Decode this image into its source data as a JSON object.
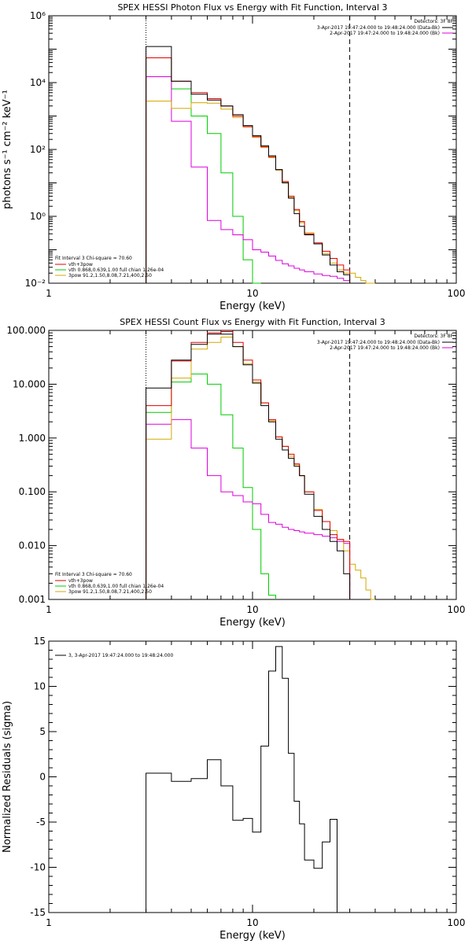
{
  "colors": {
    "data": "#000000",
    "total": "#e00000",
    "vth": "#00cc00",
    "bpow": "#dd00dd",
    "third": "#d4a800",
    "ax": "#000000"
  },
  "chart_data": [
    {
      "type": "line",
      "title": "SPEX HESSI Photon Flux vs Energy with Fit Function, Interval 3",
      "xlabel": "Energy (keV)",
      "ylabel": "photons s⁻¹ cm⁻² keV⁻¹",
      "xscale": "log",
      "yscale": "log",
      "xlim": [
        1,
        100
      ],
      "ylim": [
        0.01,
        1000000
      ],
      "xticks": [
        {
          "v": 1,
          "label": "1"
        },
        {
          "v": 10,
          "label": "10"
        },
        {
          "v": 100,
          "label": "100"
        }
      ],
      "yticks": [
        {
          "v": 0.01,
          "label": "10⁻²"
        },
        {
          "v": 1,
          "label": "10⁰"
        },
        {
          "v": 100,
          "label": "10²"
        },
        {
          "v": 10000,
          "label": "10⁴"
        },
        {
          "v": 1000000,
          "label": "10⁶"
        }
      ],
      "vlines": [
        {
          "x": 3,
          "style": "dotted"
        },
        {
          "x": 30,
          "style": "dashed"
        }
      ],
      "edges": [
        3,
        4,
        5,
        6,
        7,
        8,
        9,
        10,
        11,
        12,
        13,
        14,
        15,
        16,
        17,
        18,
        20,
        22,
        24,
        26,
        28,
        30,
        32,
        34,
        36,
        38,
        40
      ],
      "series": [
        {
          "key": "data",
          "values": [
            120000,
            11000,
            4500,
            3000,
            2000,
            1100,
            520,
            260,
            130,
            65,
            25,
            10,
            3.5,
            1.2,
            0.5,
            0.28,
            0.15,
            0.07,
            0.035,
            0.022,
            0.018,
            null,
            null,
            null,
            null,
            null
          ]
        },
        {
          "key": "total",
          "values": [
            55000,
            11000,
            5000,
            3300,
            2000,
            1000,
            480,
            240,
            120,
            60,
            25,
            11,
            4,
            1.6,
            0.7,
            0.3,
            0.16,
            0.09,
            0.055,
            0.035,
            0.025,
            null,
            null,
            null,
            null,
            null
          ]
        },
        {
          "key": "vth",
          "values": [
            55000,
            6500,
            1000,
            300,
            20,
            1,
            0.05,
            0.004,
            null,
            null,
            null,
            null,
            null,
            null,
            null,
            null,
            null,
            null,
            null,
            null,
            null,
            null,
            null,
            null,
            null,
            null
          ]
        },
        {
          "key": "bpow",
          "values": [
            15000,
            700,
            30,
            0.75,
            0.4,
            0.28,
            0.2,
            0.1,
            0.085,
            0.065,
            0.048,
            0.038,
            0.033,
            0.028,
            0.025,
            0.022,
            0.019,
            0.017,
            0.016,
            0.014,
            0.012,
            null,
            null,
            null,
            null,
            null
          ]
        },
        {
          "key": "third",
          "values": [
            2800,
            1700,
            2500,
            2400,
            1600,
            900,
            470,
            230,
            115,
            57,
            24,
            10.5,
            3.7,
            1.5,
            0.65,
            0.32,
            0.15,
            0.075,
            0.04,
            0.025,
            0.02,
            0.02,
            0.015,
            0.012,
            0.01,
            0.008
          ]
        }
      ],
      "legend_right": {
        "header": "Detectors: 3F 8F",
        "entries": [
          {
            "text": "3-Apr-2017 19:47:24.000 to 19:48:24.000 (Data-Bk)",
            "color": "data"
          },
          {
            "text": "2-Apr-2017 19:47:24.000 to 19:48:24.000 (Bk)",
            "color": "bpow"
          }
        ]
      },
      "legend_left": {
        "header": "Fit Interval 3   Chi-square = 70.60",
        "entries": [
          {
            "text": "vth+3pow",
            "color": "total"
          },
          {
            "text": "vth 0.868,0.639,1.00  full chian 1.26e-04",
            "color": "vth"
          },
          {
            "text": "3pow 91.2,1.50,8.08,7.21,400,2.50",
            "color": "third"
          }
        ]
      }
    },
    {
      "type": "line",
      "title": "SPEX HESSI Count Flux vs Energy with Fit Function, Interval 3",
      "xlabel": "Energy (keV)",
      "ylabel": "",
      "xscale": "log",
      "yscale": "log",
      "xlim": [
        1,
        100
      ],
      "ylim": [
        0.001,
        100
      ],
      "xticks": [
        {
          "v": 1,
          "label": "1"
        },
        {
          "v": 10,
          "label": "10"
        },
        {
          "v": 100,
          "label": "100"
        }
      ],
      "yticks": [
        {
          "v": 0.001,
          "label": "0.001"
        },
        {
          "v": 0.01,
          "label": "0.010"
        },
        {
          "v": 0.1,
          "label": "0.100"
        },
        {
          "v": 1,
          "label": "1.000"
        },
        {
          "v": 10,
          "label": "10.000"
        },
        {
          "v": 100,
          "label": "100.000"
        }
      ],
      "vlines": [
        {
          "x": 3,
          "style": "dotted"
        },
        {
          "x": 30,
          "style": "dashed"
        }
      ],
      "edges": [
        3,
        4,
        5,
        6,
        7,
        8,
        9,
        10,
        11,
        12,
        13,
        14,
        15,
        16,
        17,
        18,
        20,
        22,
        24,
        26,
        28,
        30,
        32,
        34,
        36,
        38,
        40,
        44
      ],
      "series": [
        {
          "key": "data",
          "values": [
            8.5,
            28,
            55,
            85,
            85,
            50,
            23,
            10.5,
            4,
            2,
            0.95,
            0.6,
            0.42,
            0.3,
            0.2,
            0.09,
            0.035,
            0.02,
            0.012,
            0.008,
            0.003,
            null,
            null,
            null,
            null,
            null,
            null
          ]
        },
        {
          "key": "total",
          "values": [
            4,
            27,
            60,
            90,
            95,
            60,
            28,
            12,
            4.5,
            2.2,
            1.05,
            0.7,
            0.5,
            0.33,
            0.2,
            0.1,
            0.045,
            0.028,
            0.016,
            0.013,
            0.012,
            null,
            null,
            null,
            null,
            null,
            null
          ]
        },
        {
          "key": "vth",
          "values": [
            3,
            11,
            15.5,
            10,
            2.7,
            0.65,
            0.12,
            0.02,
            0.003,
            0.0012,
            null,
            null,
            null,
            null,
            null,
            null,
            null,
            null,
            null,
            null,
            null,
            null,
            null,
            null,
            null,
            null,
            null
          ]
        },
        {
          "key": "bpow",
          "values": [
            1.8,
            2.2,
            0.65,
            0.2,
            0.1,
            0.085,
            0.065,
            0.06,
            0.038,
            0.027,
            0.025,
            0.022,
            0.02,
            0.019,
            0.018,
            0.017,
            0.016,
            0.015,
            0.014,
            0.012,
            0.011,
            null,
            null,
            null,
            null,
            null,
            null
          ]
        },
        {
          "key": "third",
          "values": [
            0.95,
            13,
            45,
            60,
            75,
            50,
            24,
            11,
            4.5,
            2.1,
            1.05,
            0.7,
            0.46,
            0.32,
            0.2,
            0.1,
            0.047,
            0.028,
            0.019,
            0.013,
            0.008,
            0.0045,
            0.0035,
            0.0025,
            0.0015,
            0.001,
            null
          ]
        }
      ],
      "legend_right": {
        "header": "Detectors: 3F 8F",
        "entries": [
          {
            "text": "3-Apr-2017 19:47:24.000 to 19:48:24.000 (Data-Bk)",
            "color": "data"
          },
          {
            "text": "2-Apr-2017 19:47:24.000 to 19:48:24.000 (Bk)",
            "color": "bpow"
          }
        ]
      },
      "legend_left": {
        "header": "Fit Interval 3   Chi-square = 70.60",
        "entries": [
          {
            "text": "vth+3pow",
            "color": "total"
          },
          {
            "text": "vth 0.868,0.639,1.00  full chian 1.26e-04",
            "color": "vth"
          },
          {
            "text": "3pow 91.2,1.50,8.08,7.21,400,2.50",
            "color": "third"
          }
        ]
      }
    },
    {
      "type": "line",
      "title": "",
      "xlabel": "Energy (keV)",
      "ylabel": "Normalized Residuals (sigma)",
      "xscale": "log",
      "yscale": "linear",
      "xlim": [
        1,
        100
      ],
      "ylim": [
        -15,
        15
      ],
      "xticks": [
        {
          "v": 1,
          "label": "1"
        },
        {
          "v": 10,
          "label": "10"
        },
        {
          "v": 100,
          "label": "100"
        }
      ],
      "yticks": [
        {
          "v": -15,
          "label": "-15"
        },
        {
          "v": -10,
          "label": "-10"
        },
        {
          "v": -5,
          "label": "-5"
        },
        {
          "v": 0,
          "label": "0"
        },
        {
          "v": 5,
          "label": "5"
        },
        {
          "v": 10,
          "label": "10"
        },
        {
          "v": 15,
          "label": "15"
        }
      ],
      "vlines": [],
      "edges": [
        3,
        4,
        5,
        6,
        7,
        8,
        9,
        10,
        11,
        12,
        13,
        14,
        15,
        16,
        17,
        18,
        20,
        22,
        24,
        26,
        28,
        30
      ],
      "series": [
        {
          "key": "data",
          "values": [
            0.4,
            -0.5,
            -0.2,
            1.9,
            -1.0,
            -4.8,
            -4.6,
            -6.1,
            3.4,
            11.7,
            14.4,
            10.9,
            2.6,
            -2.7,
            -5.2,
            -9.2,
            -10.1,
            -7.2,
            -4.7,
            null,
            null
          ],
          "drop_to_min": true
        }
      ],
      "legend_left": {
        "header": "",
        "entries": [
          {
            "text": "3,  3-Apr-2017 19:47:24.000 to 19:48:24.000",
            "color": "data"
          }
        ]
      }
    }
  ]
}
